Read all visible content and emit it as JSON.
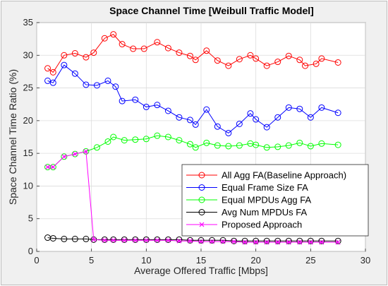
{
  "chart_data": {
    "type": "line",
    "title": "Space Channel Time [Weibull Traffic Model]",
    "xlabel": "Average Offered Traffic [Mbps]",
    "ylabel": "Space Channel Time Ratio (%)",
    "xlim": [
      0,
      30
    ],
    "ylim": [
      0,
      35
    ],
    "xticks": [
      0,
      5,
      10,
      15,
      20,
      25,
      30
    ],
    "yticks": [
      0,
      5,
      10,
      15,
      20,
      25,
      30,
      35
    ],
    "grid": true,
    "legend_position": "bottom-right",
    "colors": {
      "axis": "#262626",
      "grid": "#dcdcdc",
      "plot_background": "#ffffff"
    },
    "series": [
      {
        "name": "All Agg FA(Baseline Approach)",
        "color": "#ff0000",
        "marker": "circle",
        "x": [
          1,
          1.5,
          2.5,
          3.5,
          4.5,
          5.2,
          6.2,
          7,
          7.8,
          8.8,
          9.8,
          11,
          12,
          13,
          14,
          14.5,
          15.5,
          16.5,
          17.5,
          18.5,
          19.5,
          20,
          21,
          22,
          23,
          24,
          24.5,
          25.5,
          26,
          27.5
        ],
        "y": [
          28,
          27.4,
          30,
          30.3,
          29.7,
          30.4,
          32.6,
          33.2,
          31.7,
          31,
          31,
          32,
          31.1,
          30.4,
          29.9,
          29.3,
          30.7,
          29.2,
          28.4,
          29.4,
          30,
          29.5,
          28.4,
          29,
          29.9,
          29.3,
          28.4,
          28.7,
          29.5,
          28.9
        ]
      },
      {
        "name": "Equal Frame Size FA",
        "color": "#0000ff",
        "marker": "circle",
        "x": [
          1,
          1.5,
          2.5,
          3.5,
          4.5,
          5.5,
          6.5,
          7.2,
          7.8,
          9,
          10,
          11,
          12,
          13,
          14,
          14.5,
          15.5,
          16.5,
          17.5,
          18.5,
          19.5,
          20,
          21,
          22,
          23,
          24,
          25,
          26,
          27.5
        ],
        "y": [
          26.1,
          25.8,
          28.5,
          27.2,
          25.5,
          25.4,
          26.1,
          25.2,
          23,
          23.2,
          22.1,
          22.4,
          21.5,
          20.5,
          20.1,
          19.4,
          21.7,
          19.1,
          18.1,
          19.5,
          21.1,
          20.2,
          19,
          20.5,
          22,
          21.8,
          20.5,
          22,
          21.2
        ]
      },
      {
        "name": "Equal MPDUs Agg FA",
        "color": "#00ff00",
        "marker": "circle",
        "x": [
          1,
          1.5,
          2.5,
          3.5,
          4.5,
          5.5,
          6.5,
          7,
          8,
          9,
          10,
          11,
          12,
          13,
          14,
          14.5,
          15.5,
          16.5,
          17.5,
          18.5,
          19.5,
          20,
          21,
          22,
          23,
          24,
          25,
          26,
          27.5
        ],
        "y": [
          12.9,
          12.9,
          14.5,
          14.9,
          15.3,
          15.9,
          16.8,
          17.5,
          17,
          17.1,
          17.2,
          17.7,
          17.5,
          17,
          16.4,
          15.9,
          16.6,
          16.2,
          16.1,
          16.2,
          16.5,
          16.3,
          15.9,
          16,
          16.2,
          16.6,
          16.1,
          16.5,
          16.3
        ]
      },
      {
        "name": "Avg Num MPDUs FA",
        "color": "#000000",
        "marker": "circle",
        "x": [
          1,
          1.5,
          2.5,
          3.5,
          4.5,
          5.2,
          6.2,
          7,
          8,
          9,
          10,
          11,
          12,
          13,
          14,
          15,
          16,
          17,
          18,
          19,
          20,
          21,
          22,
          23,
          24,
          25,
          26,
          27.5
        ],
        "y": [
          2.1,
          2,
          1.9,
          1.9,
          1.9,
          1.8,
          1.8,
          1.8,
          1.8,
          1.8,
          1.8,
          1.8,
          1.8,
          1.8,
          1.7,
          1.7,
          1.7,
          1.7,
          1.6,
          1.6,
          1.6,
          1.6,
          1.6,
          1.6,
          1.6,
          1.6,
          1.6,
          1.6
        ]
      },
      {
        "name": "Proposed Approach",
        "color": "#ff00ff",
        "marker": "x",
        "x": [
          1,
          1.5,
          2.5,
          3.5,
          4.5,
          5.2,
          6.2,
          7,
          8,
          9,
          10,
          11,
          12,
          13,
          14,
          15,
          16,
          17,
          18,
          19,
          20,
          21,
          22,
          23,
          24,
          25,
          26,
          27.5
        ],
        "y": [
          12.9,
          12.9,
          14.5,
          14.9,
          15.3,
          1.8,
          1.7,
          1.7,
          1.7,
          1.7,
          1.7,
          1.7,
          1.7,
          1.6,
          1.6,
          1.5,
          1.5,
          1.5,
          1.5,
          1.4,
          1.4,
          1.4,
          1.4,
          1.4,
          1.4,
          1.4,
          1.4,
          1.4
        ]
      }
    ]
  }
}
